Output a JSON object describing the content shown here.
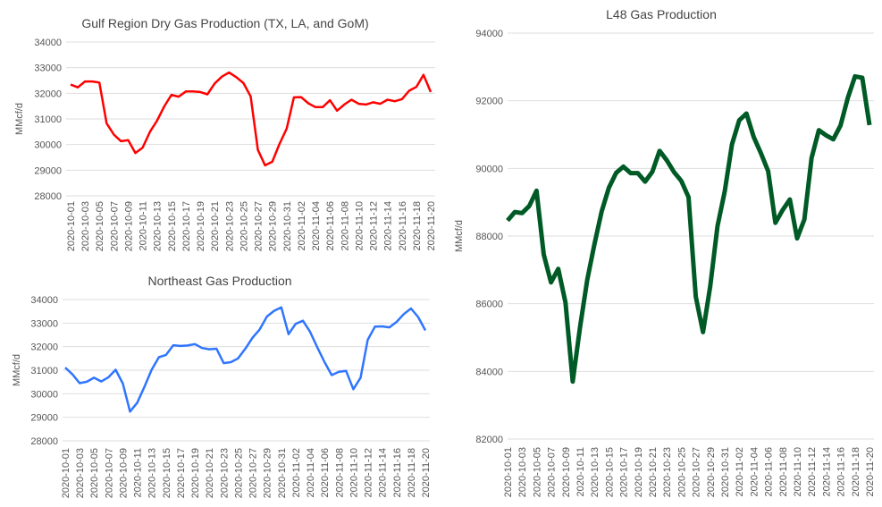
{
  "chart_data": [
    {
      "type": "line",
      "title": "Gulf Region Dry Gas Production (TX, LA, and GoM)",
      "ylabel": "MMcf/d",
      "xlabel": "",
      "ylim": [
        28000,
        34000
      ],
      "yticks": [
        28000,
        29000,
        30000,
        31000,
        32000,
        33000,
        34000
      ],
      "grid": true,
      "color": "#ff0000",
      "series": [
        {
          "name": "Gulf",
          "values": [
            32340,
            32230,
            32460,
            32460,
            32420,
            30830,
            30390,
            30130,
            30170,
            29670,
            29880,
            30490,
            30930,
            31490,
            31940,
            31870,
            32070,
            32070,
            32050,
            31960,
            32380,
            32650,
            32810,
            32630,
            32400,
            31880,
            29790,
            29190,
            29330,
            30020,
            30620,
            31840,
            31850,
            31610,
            31460,
            31460,
            31730,
            31320,
            31560,
            31750,
            31590,
            31560,
            31650,
            31590,
            31750,
            31690,
            31770,
            32100,
            32250,
            32720,
            32050
          ]
        }
      ]
    },
    {
      "type": "line",
      "title": "Northeast Gas Production",
      "ylabel": "MMcf/d",
      "xlabel": "",
      "ylim": [
        28000,
        34000
      ],
      "yticks": [
        28000,
        29000,
        30000,
        31000,
        32000,
        33000,
        34000
      ],
      "grid": true,
      "color": "#2f75ff",
      "series": [
        {
          "name": "Northeast",
          "values": [
            31110,
            30820,
            30450,
            30510,
            30680,
            30520,
            30700,
            31020,
            30430,
            29240,
            29620,
            30300,
            31020,
            31550,
            31650,
            32060,
            32030,
            32050,
            32110,
            31940,
            31890,
            31910,
            31300,
            31340,
            31500,
            31910,
            32380,
            32730,
            33280,
            33520,
            33670,
            32530,
            32970,
            33100,
            32630,
            31970,
            31340,
            30790,
            30930,
            30970,
            30190,
            30680,
            32290,
            32850,
            32860,
            32820,
            33050,
            33380,
            33620,
            33260,
            32690
          ]
        }
      ]
    },
    {
      "type": "line",
      "title": "L48 Gas Production",
      "ylabel": "MMcf/d",
      "xlabel": "",
      "ylim": [
        82000,
        94000
      ],
      "yticks": [
        82000,
        84000,
        86000,
        88000,
        90000,
        92000,
        94000
      ],
      "grid": true,
      "color": "#005a25",
      "series": [
        {
          "name": "L48",
          "values": [
            88460,
            88710,
            88680,
            88890,
            89340,
            87450,
            86630,
            87030,
            86040,
            83700,
            85290,
            86700,
            87760,
            88730,
            89430,
            89870,
            90050,
            89860,
            89860,
            89610,
            89900,
            90520,
            90240,
            89890,
            89630,
            89150,
            86210,
            85160,
            86520,
            88290,
            89320,
            90710,
            91420,
            91620,
            90930,
            90450,
            89920,
            88390,
            88770,
            89080,
            87930,
            88490,
            90310,
            91130,
            90980,
            90860,
            91270,
            92080,
            92720,
            92680,
            91280
          ]
        }
      ]
    }
  ],
  "x_tick_labels": [
    "2020-10-01",
    "2020-10-03",
    "2020-10-05",
    "2020-10-07",
    "2020-10-09",
    "2020-10-11",
    "2020-10-13",
    "2020-10-15",
    "2020-10-17",
    "2020-10-19",
    "2020-10-21",
    "2020-10-23",
    "2020-10-25",
    "2020-10-27",
    "2020-10-29",
    "2020-10-31",
    "2020-11-02",
    "2020-11-04",
    "2020-11-06",
    "2020-11-08",
    "2020-11-10",
    "2020-11-12",
    "2020-11-14",
    "2020-11-16",
    "2020-11-18",
    "2020-11-20"
  ]
}
